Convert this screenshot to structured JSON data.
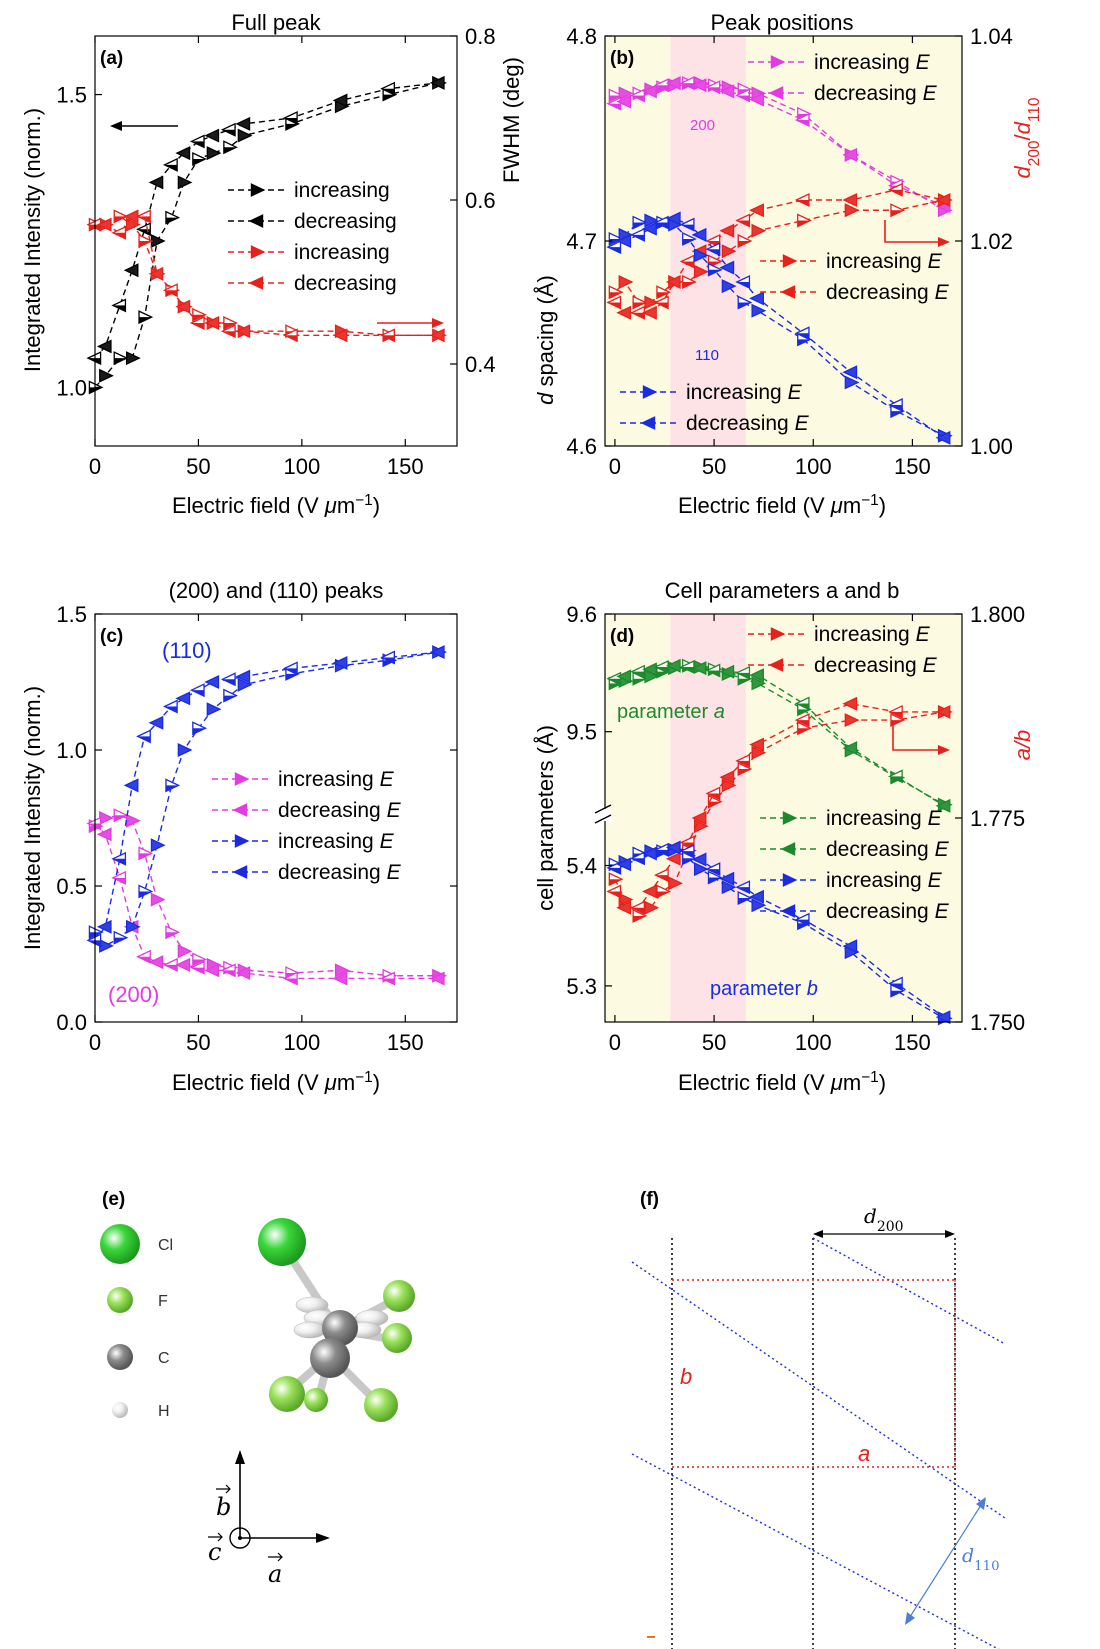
{
  "colors": {
    "black": "#000000",
    "red": "#e8201b",
    "magenta": "#e23be0",
    "blue": "#1a2be0",
    "green": "#1c8a2a",
    "yellow_shade": "#fdfae2",
    "pink_shade": "#fde3e6",
    "arrow": "#e8201b",
    "cl": "#3ad63a",
    "f": "#9ae05a",
    "c": "#8c8c8c",
    "h": "#f0f0f0"
  },
  "chart_data": [
    {
      "id": "a",
      "type": "line",
      "title": "Full peak",
      "panel_label": "(a)",
      "xlabel": "Electric field (V μm⁻¹)",
      "ylabel": "Integrated Intensity (norm.)",
      "ylabel_right": "FWHM (deg)",
      "xlim": [
        0,
        175
      ],
      "ylim": [
        0.9,
        1.6
      ],
      "ylim_right": [
        0.3,
        0.8
      ],
      "xticks": [
        "0",
        "50",
        "100",
        "150"
      ],
      "yticks": [
        "1.0",
        "1.5"
      ],
      "yticks_right": [
        "0.4",
        "0.6",
        "0.8"
      ],
      "legend": "center-right",
      "series": [
        {
          "name": "increasing",
          "axis": "left",
          "color": "black",
          "marker": "right",
          "x": [
            0,
            5,
            12,
            18,
            24,
            30,
            37,
            43,
            50,
            57,
            65,
            72,
            95,
            119,
            142,
            166
          ],
          "y": [
            1.0,
            1.02,
            1.05,
            1.05,
            1.12,
            1.25,
            1.29,
            1.35,
            1.39,
            1.4,
            1.41,
            1.43,
            1.45,
            1.48,
            1.5,
            1.52
          ]
        },
        {
          "name": "decreasing",
          "axis": "left",
          "color": "black",
          "marker": "left",
          "x": [
            0,
            5,
            12,
            18,
            24,
            30,
            37,
            43,
            50,
            57,
            65,
            72,
            95,
            119,
            142,
            166
          ],
          "y": [
            1.05,
            1.07,
            1.14,
            1.2,
            1.27,
            1.35,
            1.38,
            1.4,
            1.42,
            1.43,
            1.44,
            1.45,
            1.46,
            1.49,
            1.51,
            1.52
          ]
        },
        {
          "name": "increasing",
          "axis": "right",
          "color": "red",
          "marker": "right",
          "x": [
            0,
            5,
            12,
            18,
            24,
            30,
            37,
            43,
            50,
            57,
            65,
            72,
            95,
            119,
            142,
            166
          ],
          "y": [
            0.57,
            0.57,
            0.58,
            0.57,
            0.55,
            0.51,
            0.49,
            0.47,
            0.46,
            0.45,
            0.45,
            0.44,
            0.44,
            0.44,
            0.435,
            0.435
          ]
        },
        {
          "name": "decreasing",
          "axis": "right",
          "color": "red",
          "marker": "left",
          "x": [
            0,
            5,
            12,
            18,
            24,
            30,
            37,
            43,
            50,
            57,
            65,
            72,
            95,
            119,
            142,
            166
          ],
          "y": [
            0.57,
            0.57,
            0.56,
            0.58,
            0.58,
            0.51,
            0.49,
            0.47,
            0.45,
            0.45,
            0.44,
            0.44,
            0.435,
            0.435,
            0.435,
            0.435
          ]
        }
      ],
      "legend_entries": [
        "increasing",
        "decreasing",
        "increasing",
        "decreasing"
      ]
    },
    {
      "id": "b",
      "type": "line",
      "title": "Peak positions",
      "panel_label": "(b)",
      "xlabel": "Electric field (V μm⁻¹)",
      "ylabel": "d spacing (Å)",
      "ylabel_right": "d200/d110",
      "xlim": [
        -5,
        175
      ],
      "ylim": [
        4.6,
        4.8
      ],
      "ylim_right": [
        1.0,
        1.04
      ],
      "xticks": [
        "0",
        "50",
        "100",
        "150"
      ],
      "yticks": [
        "4.6",
        "4.7",
        "4.8"
      ],
      "yticks_right": [
        "1.00",
        "1.02",
        "1.04"
      ],
      "shaded_regions": [
        {
          "x": [
            28,
            66
          ],
          "color": "pink_shade"
        }
      ],
      "annotations": [
        "200",
        "110"
      ],
      "series": [
        {
          "name": "increasing E",
          "axis": "left",
          "color": "magenta",
          "marker": "right",
          "x": [
            0,
            5,
            12,
            18,
            24,
            30,
            37,
            43,
            50,
            57,
            65,
            72,
            95,
            119,
            142,
            166
          ],
          "y": [
            4.771,
            4.772,
            4.772,
            4.774,
            4.775,
            4.776,
            4.777,
            4.777,
            4.776,
            4.775,
            4.774,
            4.772,
            4.762,
            4.742,
            4.729,
            4.715
          ]
        },
        {
          "name": "decreasing E",
          "axis": "left",
          "color": "magenta",
          "marker": "left",
          "x": [
            0,
            5,
            12,
            18,
            24,
            30,
            37,
            43,
            50,
            57,
            65,
            72,
            95,
            119,
            142,
            166
          ],
          "y": [
            4.767,
            4.768,
            4.771,
            4.773,
            4.776,
            4.777,
            4.777,
            4.776,
            4.775,
            4.773,
            4.771,
            4.769,
            4.759,
            4.742,
            4.727,
            4.717
          ]
        },
        {
          "name": "increasing E",
          "axis": "right",
          "color": "red",
          "marker": "right",
          "x": [
            0,
            5,
            12,
            18,
            24,
            30,
            37,
            43,
            50,
            57,
            65,
            72,
            95,
            119,
            142,
            166
          ],
          "y": [
            1.015,
            1.016,
            1.014,
            1.014,
            1.015,
            1.016,
            1.016,
            1.017,
            1.018,
            1.019,
            1.02,
            1.021,
            1.022,
            1.023,
            1.023,
            1.024
          ]
        },
        {
          "name": "decreasing E",
          "axis": "right",
          "color": "red",
          "marker": "left",
          "x": [
            0,
            5,
            12,
            18,
            24,
            30,
            37,
            43,
            50,
            57,
            65,
            72,
            95,
            119,
            142,
            166
          ],
          "y": [
            1.014,
            1.013,
            1.013,
            1.013,
            1.014,
            1.016,
            1.018,
            1.019,
            1.02,
            1.021,
            1.022,
            1.023,
            1.024,
            1.024,
            1.025,
            1.024
          ]
        },
        {
          "name": "increasing E",
          "axis": "left",
          "color": "blue",
          "marker": "right",
          "x": [
            0,
            5,
            12,
            18,
            24,
            30,
            37,
            43,
            50,
            57,
            65,
            72,
            95,
            119,
            142,
            166
          ],
          "y": [
            4.701,
            4.703,
            4.709,
            4.71,
            4.709,
            4.708,
            4.701,
            4.693,
            4.686,
            4.678,
            4.67,
            4.666,
            4.652,
            4.631,
            4.617,
            4.605
          ]
        },
        {
          "name": "decreasing E",
          "axis": "left",
          "color": "blue",
          "marker": "left",
          "x": [
            0,
            5,
            12,
            18,
            24,
            30,
            37,
            43,
            50,
            57,
            65,
            72,
            95,
            119,
            142,
            166
          ],
          "y": [
            4.697,
            4.7,
            4.703,
            4.706,
            4.709,
            4.711,
            4.708,
            4.703,
            4.696,
            4.687,
            4.68,
            4.672,
            4.655,
            4.636,
            4.62,
            4.604
          ]
        }
      ],
      "legend_entries": [
        "increasing E",
        "decreasing E",
        "increasing E",
        "decreasing E",
        "increasing E",
        "decreasing E"
      ]
    },
    {
      "id": "c",
      "type": "line",
      "title": "(200) and (110) peaks",
      "panel_label": "(c)",
      "xlabel": "Electric field (V μm⁻¹)",
      "ylabel": "Integrated Intensity (norm.)",
      "xlim": [
        0,
        175
      ],
      "ylim": [
        0,
        1.5
      ],
      "xticks": [
        "0",
        "50",
        "100",
        "150"
      ],
      "yticks": [
        "0.0",
        "0.5",
        "1.0",
        "1.5"
      ],
      "annotations": [
        "(110)",
        "(200)"
      ],
      "series": [
        {
          "name": "increasing E",
          "color": "magenta",
          "marker": "right",
          "x": [
            0,
            5,
            12,
            18,
            24,
            30,
            37,
            43,
            50,
            57,
            65,
            72,
            95,
            119,
            142,
            166
          ],
          "y": [
            0.72,
            0.75,
            0.76,
            0.74,
            0.62,
            0.45,
            0.33,
            0.26,
            0.23,
            0.21,
            0.2,
            0.19,
            0.18,
            0.19,
            0.17,
            0.17
          ]
        },
        {
          "name": "decreasing E",
          "color": "magenta",
          "marker": "left",
          "x": [
            0,
            5,
            12,
            18,
            24,
            30,
            37,
            43,
            50,
            57,
            65,
            72,
            95,
            119,
            142,
            166
          ],
          "y": [
            0.73,
            0.69,
            0.53,
            0.35,
            0.24,
            0.22,
            0.21,
            0.21,
            0.2,
            0.19,
            0.19,
            0.18,
            0.16,
            0.16,
            0.16,
            0.16
          ]
        },
        {
          "name": "increasing E",
          "color": "blue",
          "marker": "right",
          "x": [
            0,
            5,
            12,
            18,
            24,
            30,
            37,
            43,
            50,
            57,
            65,
            72,
            95,
            119,
            142,
            166
          ],
          "y": [
            0.33,
            0.28,
            0.31,
            0.35,
            0.48,
            0.65,
            0.87,
            1.0,
            1.08,
            1.15,
            1.2,
            1.24,
            1.28,
            1.31,
            1.33,
            1.36
          ]
        },
        {
          "name": "decreasing E",
          "color": "blue",
          "marker": "left",
          "x": [
            0,
            5,
            12,
            18,
            24,
            30,
            37,
            43,
            50,
            57,
            65,
            72,
            95,
            119,
            142,
            166
          ],
          "y": [
            0.3,
            0.35,
            0.6,
            0.87,
            1.05,
            1.1,
            1.16,
            1.19,
            1.22,
            1.25,
            1.26,
            1.27,
            1.3,
            1.32,
            1.34,
            1.36
          ]
        }
      ],
      "legend_entries": [
        "increasing E",
        "decreasing E",
        "increasing E",
        "decreasing E"
      ]
    },
    {
      "id": "d",
      "type": "line",
      "title": "Cell parameters a and b",
      "panel_label": "(d)",
      "xlabel": "Electric field (V μm⁻¹)",
      "ylabel": "cell parameters (Å)",
      "ylabel_right": "a/b",
      "xlim": [
        -5,
        175
      ],
      "ylim_right": [
        1.75,
        1.8
      ],
      "xticks": [
        "0",
        "50",
        "100",
        "150"
      ],
      "yticks": [
        "9.6",
        "9.5",
        "5.4",
        "5.3"
      ],
      "yticks_right": [
        "1.800",
        "1.775",
        "1.750"
      ],
      "y_axis_break": true,
      "shaded_regions": [
        {
          "x": [
            28,
            66
          ],
          "color": "pink_shade"
        }
      ],
      "annotations": [
        "parameter a",
        "parameter b"
      ],
      "series": [
        {
          "name": "increasing E",
          "axis": "right",
          "color": "red",
          "marker": "right",
          "x": [
            0,
            5,
            12,
            18,
            24,
            30,
            37,
            43,
            50,
            57,
            65,
            72,
            95,
            119,
            142,
            166
          ],
          "y": [
            1.7675,
            1.765,
            1.763,
            1.764,
            1.766,
            1.767,
            1.771,
            1.774,
            1.777,
            1.779,
            1.781,
            1.783,
            1.786,
            1.787,
            1.787,
            1.788
          ]
        },
        {
          "name": "decreasing E",
          "axis": "right",
          "color": "red",
          "marker": "left",
          "x": [
            0,
            5,
            12,
            18,
            24,
            30,
            37,
            43,
            50,
            57,
            65,
            72,
            95,
            119,
            142,
            166
          ],
          "y": [
            1.766,
            1.764,
            1.764,
            1.766,
            1.768,
            1.77,
            1.772,
            1.775,
            1.778,
            1.78,
            1.782,
            1.784,
            1.787,
            1.789,
            1.788,
            1.788
          ]
        },
        {
          "name": "increasing E",
          "axis": "left",
          "color": "green",
          "marker": "right",
          "x": [
            0,
            5,
            12,
            18,
            24,
            30,
            37,
            43,
            50,
            57,
            65,
            72,
            95,
            119,
            142,
            166
          ],
          "y": [
            9.541,
            9.543,
            9.545,
            9.547,
            9.551,
            9.554,
            9.556,
            9.555,
            9.553,
            9.549,
            9.545,
            9.541,
            9.519,
            9.484,
            9.461,
            9.438
          ]
        },
        {
          "name": "decreasing E",
          "axis": "left",
          "color": "green",
          "marker": "left",
          "x": [
            0,
            5,
            12,
            18,
            24,
            30,
            37,
            43,
            50,
            57,
            65,
            72,
            95,
            119,
            142,
            166
          ],
          "y": [
            9.545,
            9.547,
            9.551,
            9.553,
            9.555,
            9.556,
            9.555,
            9.554,
            9.552,
            9.551,
            9.55,
            9.548,
            9.524,
            9.486,
            9.462,
            9.437
          ]
        },
        {
          "name": "increasing E",
          "axis": "left",
          "color": "blue",
          "marker": "right",
          "x": [
            0,
            5,
            12,
            18,
            24,
            30,
            37,
            43,
            50,
            57,
            65,
            72,
            95,
            119,
            142,
            166
          ],
          "y": [
            5.401,
            5.403,
            5.41,
            5.412,
            5.412,
            5.413,
            5.406,
            5.397,
            5.39,
            5.382,
            5.373,
            5.367,
            5.352,
            5.328,
            5.296,
            5.273
          ]
        },
        {
          "name": "decreasing E",
          "axis": "left",
          "color": "blue",
          "marker": "left",
          "x": [
            0,
            5,
            12,
            18,
            24,
            30,
            37,
            43,
            50,
            57,
            65,
            72,
            95,
            119,
            142,
            166
          ],
          "y": [
            5.398,
            5.401,
            5.406,
            5.41,
            5.413,
            5.415,
            5.412,
            5.405,
            5.397,
            5.389,
            5.382,
            5.374,
            5.355,
            5.333,
            5.302,
            5.274
          ]
        }
      ],
      "legend_entries": [
        "increasing E",
        "decreasing E",
        "increasing E",
        "decreasing E",
        "increasing E",
        "decreasing E"
      ]
    }
  ],
  "panel_e": {
    "label": "(e)",
    "atoms": [
      {
        "symbol": "Cl",
        "color": "cl"
      },
      {
        "symbol": "F",
        "color": "f"
      },
      {
        "symbol": "C",
        "color": "c"
      },
      {
        "symbol": "H",
        "color": "h"
      }
    ],
    "axis_b": "b",
    "axis_c": "c",
    "axis_a": "a"
  },
  "panel_f": {
    "label": "(f)",
    "d200": "d200",
    "d110": "d110",
    "a": "a",
    "b": "b"
  }
}
